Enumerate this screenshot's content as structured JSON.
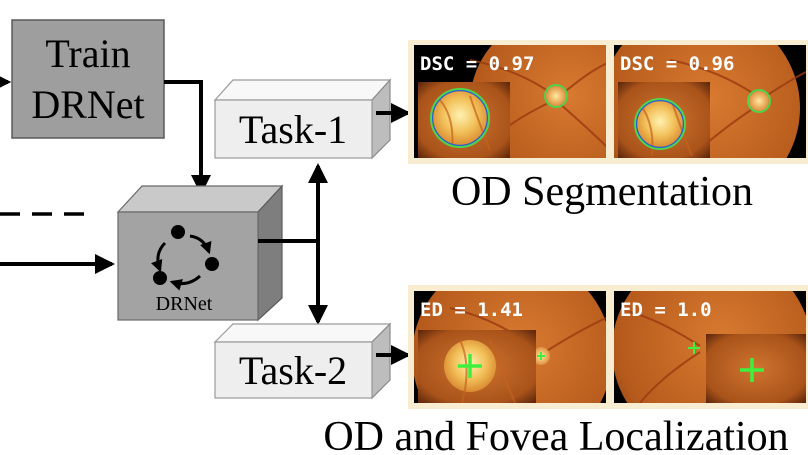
{
  "train_box": {
    "line1": "Train",
    "line2": "DRNet"
  },
  "drnet_cube": {
    "label": "DRNet"
  },
  "task1": {
    "label": "Task-1",
    "caption": "OD Segmentation"
  },
  "task2": {
    "label": "Task-2",
    "caption": "OD and Fovea Localization"
  },
  "segmentation_results": [
    {
      "metric": "DSC",
      "value": "0.97"
    },
    {
      "metric": "DSC",
      "value": "0.96"
    }
  ],
  "localization_results": [
    {
      "metric": "ED",
      "value": "1.41"
    },
    {
      "metric": "ED",
      "value": "1.0"
    }
  ],
  "colors": {
    "box_gray": "#9e9e9e",
    "cube_front": "#a3a3a3",
    "cube_top": "#c9c9c9",
    "cube_side": "#7e7e7e",
    "task_front": "#eeeeee",
    "task_top": "#f8f8f8",
    "task_side": "#bdbdbd",
    "panel_frame": "#f8edd0",
    "fundus_orange": "#c86a22",
    "disc_yellow": "#f2c15a",
    "seg_green": "#4ed44e",
    "seg_blue": "#2b5cd1",
    "cross_green": "#3ef03e"
  }
}
